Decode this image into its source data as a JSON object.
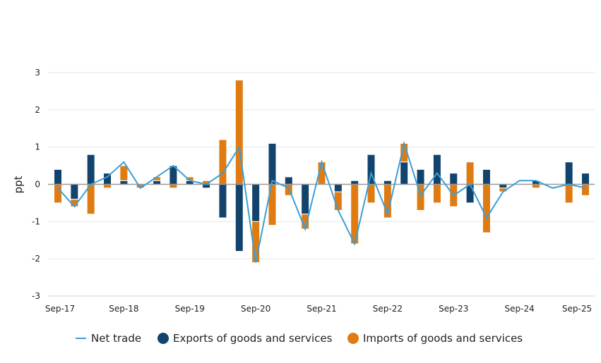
{
  "chart_data": {
    "type": "bar",
    "stacked": true,
    "ylabel": "ppt",
    "ylim": [
      -3,
      3
    ],
    "yticks": [
      3,
      2,
      1,
      0,
      -1,
      -2,
      -3
    ],
    "grid": true,
    "legend_position": "bottom",
    "categories": [
      "Sep-17",
      "Dec-17",
      "Mar-18",
      "Jun-18",
      "Sep-18",
      "Dec-18",
      "Mar-19",
      "Jun-19",
      "Sep-19",
      "Dec-19",
      "Mar-20",
      "Jun-20",
      "Sep-20",
      "Dec-20",
      "Mar-21",
      "Jun-21",
      "Sep-21",
      "Dec-21",
      "Mar-22",
      "Jun-22",
      "Sep-22",
      "Dec-22",
      "Mar-23",
      "Jun-23",
      "Sep-23",
      "Dec-23",
      "Mar-24",
      "Jun-24",
      "Sep-24",
      "Dec-24",
      "Mar-25",
      "Jun-25",
      "Sep-25"
    ],
    "xtick_labels": [
      "Sep-17",
      "Sep-18",
      "Sep-19",
      "Sep-20",
      "Sep-21",
      "Sep-22",
      "Sep-23",
      "Sep-24",
      "Sep-25"
    ],
    "series": [
      {
        "name": "Net trade",
        "kind": "line",
        "color": "#3a9fd8",
        "values": [
          -0.1,
          -0.6,
          0.0,
          0.2,
          0.6,
          -0.1,
          0.2,
          0.5,
          0.1,
          0.0,
          0.3,
          1.0,
          -2.1,
          0.1,
          -0.1,
          -1.2,
          0.6,
          -0.7,
          -1.6,
          0.3,
          -0.8,
          1.1,
          -0.3,
          0.3,
          -0.3,
          0.0,
          -0.9,
          -0.2,
          0.1,
          0.1,
          -0.1,
          0.0,
          -0.1
        ]
      },
      {
        "name": "Exports of goods and services",
        "kind": "bar",
        "color": "#12436d",
        "values": [
          0.4,
          -0.4,
          0.8,
          0.3,
          0.1,
          0.0,
          0.1,
          0.5,
          0.1,
          -0.1,
          -0.9,
          -1.8,
          -1.0,
          1.1,
          0.2,
          -0.8,
          0.0,
          -0.2,
          0.1,
          0.8,
          0.1,
          0.6,
          0.4,
          0.8,
          0.3,
          -0.5,
          0.4,
          -0.1,
          0.0,
          0.1,
          0.0,
          0.6,
          0.3
        ]
      },
      {
        "name": "Imports of goods and services",
        "kind": "bar",
        "color": "#e07b12",
        "values": [
          -0.5,
          -0.2,
          -0.8,
          -0.1,
          0.4,
          -0.1,
          0.1,
          -0.1,
          0.1,
          0.1,
          1.2,
          2.8,
          -1.1,
          -1.1,
          -0.3,
          -0.4,
          0.6,
          -0.5,
          -1.6,
          -0.5,
          -0.9,
          0.5,
          -0.7,
          -0.5,
          -0.6,
          0.6,
          -1.3,
          -0.1,
          0.0,
          -0.1,
          0.0,
          -0.5,
          -0.3
        ]
      }
    ]
  }
}
